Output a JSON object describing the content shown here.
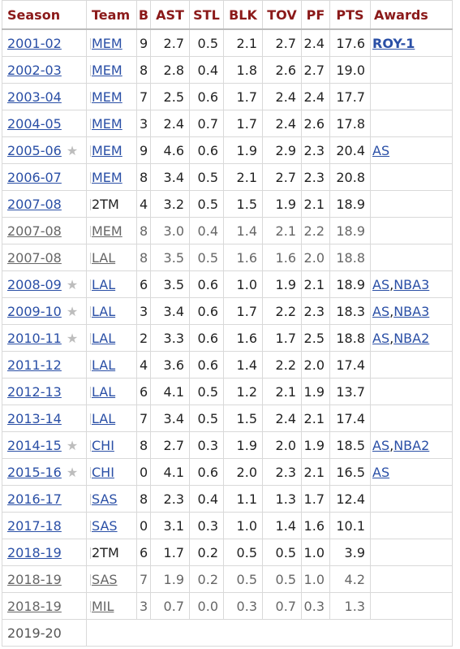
{
  "headers": [
    "Season",
    "Team",
    "B",
    "AST",
    "STL",
    "BLK",
    "TOV",
    "PF",
    "PTS",
    "Awards"
  ],
  "rows": [
    {
      "season": "2001-02",
      "star": false,
      "team": "MEM",
      "team_link": true,
      "g": "9",
      "ast": "2.7",
      "stl": "0.5",
      "blk": "2.1",
      "tov": "2.7",
      "pf": "2.4",
      "pts": "17.6",
      "awards": [
        "ROY-1"
      ],
      "partial": false
    },
    {
      "season": "2002-03",
      "star": false,
      "team": "MEM",
      "team_link": true,
      "g": "8",
      "ast": "2.8",
      "stl": "0.4",
      "blk": "1.8",
      "tov": "2.6",
      "pf": "2.7",
      "pts": "19.0",
      "awards": [],
      "partial": false
    },
    {
      "season": "2003-04",
      "star": false,
      "team": "MEM",
      "team_link": true,
      "g": "7",
      "ast": "2.5",
      "stl": "0.6",
      "blk": "1.7",
      "tov": "2.4",
      "pf": "2.4",
      "pts": "17.7",
      "awards": [],
      "partial": false
    },
    {
      "season": "2004-05",
      "star": false,
      "team": "MEM",
      "team_link": true,
      "g": "3",
      "ast": "2.4",
      "stl": "0.7",
      "blk": "1.7",
      "tov": "2.4",
      "pf": "2.6",
      "pts": "17.8",
      "awards": [],
      "partial": false
    },
    {
      "season": "2005-06",
      "star": true,
      "team": "MEM",
      "team_link": true,
      "g": "9",
      "ast": "4.6",
      "stl": "0.6",
      "blk": "1.9",
      "tov": "2.9",
      "pf": "2.3",
      "pts": "20.4",
      "awards": [
        "AS"
      ],
      "partial": false
    },
    {
      "season": "2006-07",
      "star": false,
      "team": "MEM",
      "team_link": true,
      "g": "8",
      "ast": "3.4",
      "stl": "0.5",
      "blk": "2.1",
      "tov": "2.7",
      "pf": "2.3",
      "pts": "20.8",
      "awards": [],
      "partial": false
    },
    {
      "season": "2007-08",
      "star": false,
      "team": "2TM",
      "team_link": false,
      "g": "4",
      "ast": "3.2",
      "stl": "0.5",
      "blk": "1.5",
      "tov": "1.9",
      "pf": "2.1",
      "pts": "18.9",
      "awards": [],
      "partial": false
    },
    {
      "season": "2007-08",
      "star": false,
      "team": "MEM",
      "team_link": true,
      "g": "8",
      "ast": "3.0",
      "stl": "0.4",
      "blk": "1.4",
      "tov": "2.1",
      "pf": "2.2",
      "pts": "18.9",
      "awards": [],
      "partial": true
    },
    {
      "season": "2007-08",
      "star": false,
      "team": "LAL",
      "team_link": true,
      "g": "8",
      "ast": "3.5",
      "stl": "0.5",
      "blk": "1.6",
      "tov": "1.6",
      "pf": "2.0",
      "pts": "18.8",
      "awards": [],
      "partial": true
    },
    {
      "season": "2008-09",
      "star": true,
      "team": "LAL",
      "team_link": true,
      "g": "6",
      "ast": "3.5",
      "stl": "0.6",
      "blk": "1.0",
      "tov": "1.9",
      "pf": "2.1",
      "pts": "18.9",
      "awards": [
        "AS",
        "NBA3"
      ],
      "partial": false
    },
    {
      "season": "2009-10",
      "star": true,
      "team": "LAL",
      "team_link": true,
      "g": "3",
      "ast": "3.4",
      "stl": "0.6",
      "blk": "1.7",
      "tov": "2.2",
      "pf": "2.3",
      "pts": "18.3",
      "awards": [
        "AS",
        "NBA3"
      ],
      "partial": false
    },
    {
      "season": "2010-11",
      "star": true,
      "team": "LAL",
      "team_link": true,
      "g": "2",
      "ast": "3.3",
      "stl": "0.6",
      "blk": "1.6",
      "tov": "1.7",
      "pf": "2.5",
      "pts": "18.8",
      "awards": [
        "AS",
        "NBA2"
      ],
      "partial": false
    },
    {
      "season": "2011-12",
      "star": false,
      "team": "LAL",
      "team_link": true,
      "g": "4",
      "ast": "3.6",
      "stl": "0.6",
      "blk": "1.4",
      "tov": "2.2",
      "pf": "2.0",
      "pts": "17.4",
      "awards": [],
      "partial": false
    },
    {
      "season": "2012-13",
      "star": false,
      "team": "LAL",
      "team_link": true,
      "g": "6",
      "ast": "4.1",
      "stl": "0.5",
      "blk": "1.2",
      "tov": "2.1",
      "pf": "1.9",
      "pts": "13.7",
      "awards": [],
      "partial": false
    },
    {
      "season": "2013-14",
      "star": false,
      "team": "LAL",
      "team_link": true,
      "g": "7",
      "ast": "3.4",
      "stl": "0.5",
      "blk": "1.5",
      "tov": "2.4",
      "pf": "2.1",
      "pts": "17.4",
      "awards": [],
      "partial": false
    },
    {
      "season": "2014-15",
      "star": true,
      "team": "CHI",
      "team_link": true,
      "g": "8",
      "ast": "2.7",
      "stl": "0.3",
      "blk": "1.9",
      "tov": "2.0",
      "pf": "1.9",
      "pts": "18.5",
      "awards": [
        "AS",
        "NBA2"
      ],
      "partial": false
    },
    {
      "season": "2015-16",
      "star": true,
      "team": "CHI",
      "team_link": true,
      "g": "0",
      "ast": "4.1",
      "stl": "0.6",
      "blk": "2.0",
      "tov": "2.3",
      "pf": "2.1",
      "pts": "16.5",
      "awards": [
        "AS"
      ],
      "partial": false
    },
    {
      "season": "2016-17",
      "star": false,
      "team": "SAS",
      "team_link": true,
      "g": "8",
      "ast": "2.3",
      "stl": "0.4",
      "blk": "1.1",
      "tov": "1.3",
      "pf": "1.7",
      "pts": "12.4",
      "awards": [],
      "partial": false
    },
    {
      "season": "2017-18",
      "star": false,
      "team": "SAS",
      "team_link": true,
      "g": "0",
      "ast": "3.1",
      "stl": "0.3",
      "blk": "1.0",
      "tov": "1.4",
      "pf": "1.6",
      "pts": "10.1",
      "awards": [],
      "partial": false
    },
    {
      "season": "2018-19",
      "star": false,
      "team": "2TM",
      "team_link": false,
      "g": "6",
      "ast": "1.7",
      "stl": "0.2",
      "blk": "0.5",
      "tov": "0.5",
      "pf": "1.0",
      "pts": "3.9",
      "awards": [],
      "partial": false
    },
    {
      "season": "2018-19",
      "star": false,
      "team": "SAS",
      "team_link": true,
      "g": "7",
      "ast": "1.9",
      "stl": "0.2",
      "blk": "0.5",
      "tov": "0.5",
      "pf": "1.0",
      "pts": "4.2",
      "awards": [],
      "partial": true
    },
    {
      "season": "2018-19",
      "star": false,
      "team": "MIL",
      "team_link": true,
      "g": "3",
      "ast": "0.7",
      "stl": "0.0",
      "blk": "0.3",
      "tov": "0.7",
      "pf": "0.3",
      "pts": "1.3",
      "awards": [],
      "partial": true
    }
  ],
  "last_row": {
    "season": "2019-20"
  },
  "colors": {
    "header_text": "#8b1a1a",
    "link": "#2a4fa6",
    "star": "#bdbdbd"
  },
  "icons": {
    "star": "star-icon"
  }
}
